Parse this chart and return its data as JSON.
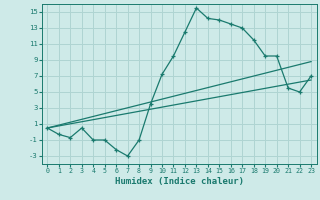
{
  "title": "",
  "xlabel": "Humidex (Indice chaleur)",
  "bg_color": "#ceeae8",
  "grid_color": "#afd4d2",
  "line_color": "#1a7a6e",
  "xlim": [
    -0.5,
    23.5
  ],
  "ylim": [
    -4.0,
    16.0
  ],
  "yticks": [
    -3,
    -1,
    1,
    3,
    5,
    7,
    9,
    11,
    13,
    15
  ],
  "xticks": [
    0,
    1,
    2,
    3,
    4,
    5,
    6,
    7,
    8,
    9,
    10,
    11,
    12,
    13,
    14,
    15,
    16,
    17,
    18,
    19,
    20,
    21,
    22,
    23
  ],
  "main_x": [
    0,
    1,
    2,
    3,
    4,
    5,
    6,
    7,
    8,
    9,
    10,
    11,
    12,
    13,
    14,
    15,
    16,
    17,
    18,
    19,
    20,
    21,
    22,
    23
  ],
  "main_y": [
    0.5,
    -0.3,
    -0.7,
    0.5,
    -1.0,
    -1.0,
    -2.2,
    -3.0,
    -1.0,
    3.5,
    7.2,
    9.5,
    12.5,
    15.5,
    14.2,
    14.0,
    13.5,
    13.0,
    11.5,
    9.5,
    9.5,
    5.5,
    5.0,
    7.0
  ],
  "line2_x": [
    0,
    23
  ],
  "line2_y": [
    0.5,
    8.8
  ],
  "line3_x": [
    0,
    23
  ],
  "line3_y": [
    0.5,
    6.5
  ]
}
